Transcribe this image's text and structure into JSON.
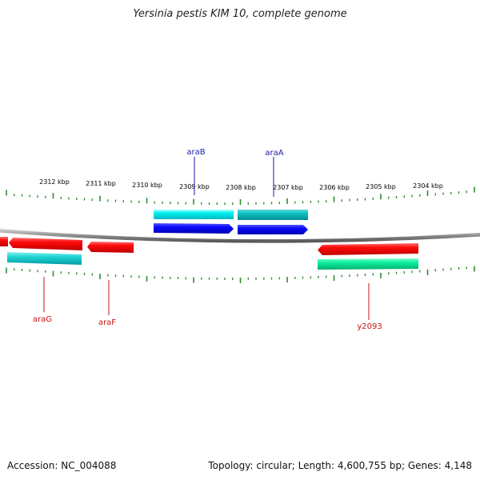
{
  "title": "Yersinia pestis KIM 10, complete genome",
  "footer": {
    "accession": "Accession: NC_004088",
    "topology": "Topology: circular; Length: 4,600,755 bp; Genes: 4,148"
  },
  "ruler": {
    "labels": [
      "2312 kbp",
      "2311 kbp",
      "2310 kbp",
      "2309 kbp",
      "2308 kbp",
      "2307 kbp",
      "2306 kbp",
      "2305 kbp",
      "2304 kbp"
    ]
  },
  "colors": {
    "backbone": "#8c8c8c",
    "tick": "#2e8b2e",
    "forward_label": "#1a1aa8",
    "reverse_label": "#c81414"
  },
  "genes": [
    {
      "name": "araB",
      "label_color": "#1a1aa8"
    },
    {
      "name": "araA",
      "label_color": "#1a1aa8"
    },
    {
      "name": "araG",
      "label_color": "#c81414"
    },
    {
      "name": "araF",
      "label_color": "#c81414"
    },
    {
      "name": "y2093",
      "label_color": "#c81414"
    }
  ]
}
